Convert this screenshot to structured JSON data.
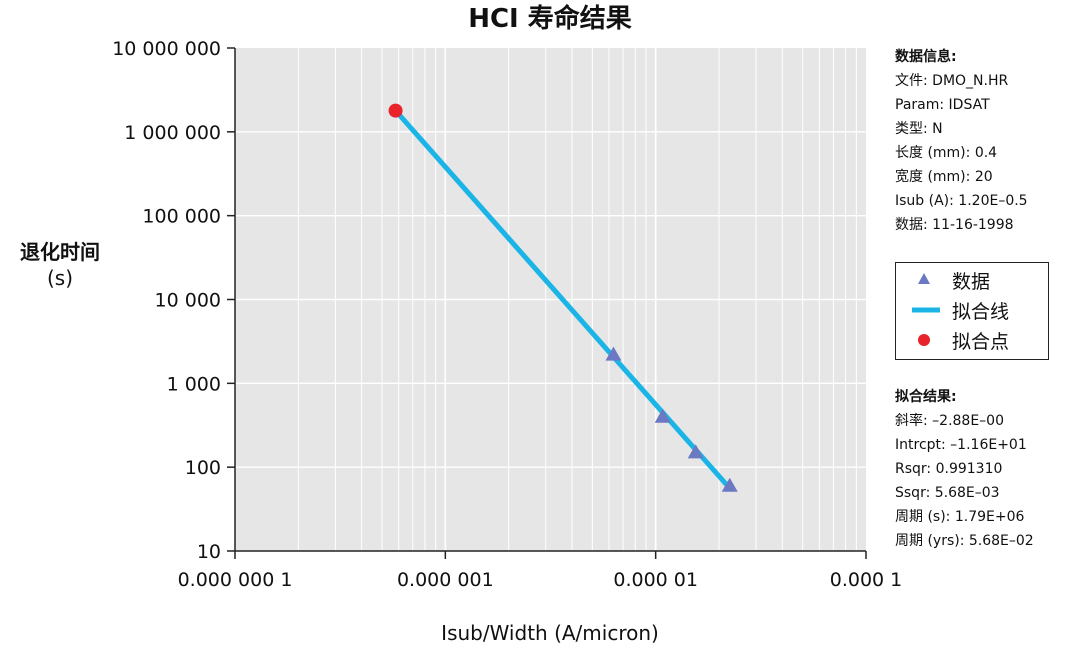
{
  "chart_data": {
    "type": "scatter",
    "title": "HCI 寿命结果",
    "xlabel": "Isub/Width (A/micron)",
    "ylabel_line1": "退化时间",
    "ylabel_line2": "(s)",
    "x_scale": "log",
    "y_scale": "log",
    "xlim": [
      1e-07,
      0.0001
    ],
    "ylim": [
      10,
      10000000
    ],
    "x_ticks": [
      1e-07,
      1e-06,
      1e-05,
      0.0001
    ],
    "x_tick_labels": [
      "0.000 000 1",
      "0.000 001",
      "0.000 01",
      "0.000 1"
    ],
    "y_ticks": [
      10,
      100,
      1000,
      10000,
      100000,
      1000000,
      10000000
    ],
    "y_tick_labels": [
      "10",
      "100",
      "1 000",
      "10 000",
      "100 000",
      "1 000 000",
      "10 000 000"
    ],
    "grid": true,
    "legend_position": "right",
    "series": [
      {
        "name": "数据",
        "marker": "triangle",
        "color": "#6b78c2",
        "points": [
          {
            "x": 6.3e-06,
            "y": 2200
          },
          {
            "x": 1.08e-05,
            "y": 400
          },
          {
            "x": 1.55e-05,
            "y": 150
          },
          {
            "x": 2.25e-05,
            "y": 60
          }
        ]
      },
      {
        "name": "拟合线",
        "marker": "line",
        "color": "#1ab4e6",
        "points": [
          {
            "x": 5.8e-07,
            "y": 1790000
          },
          {
            "x": 2.25e-05,
            "y": 56
          }
        ]
      },
      {
        "name": "拟合点",
        "marker": "circle",
        "color": "#e8232b",
        "points": [
          {
            "x": 5.8e-07,
            "y": 1790000
          }
        ]
      }
    ]
  },
  "colors": {
    "plot_bg": "#e6e6e6",
    "grid": "#ffffff",
    "axis": "#222222"
  },
  "info": {
    "data_heading": "数据信息:",
    "data_lines": [
      "文件: DMO_N.HR",
      "Param: IDSAT",
      "类型: N",
      "长度 (mm): 0.4",
      "宽度 (mm):   20",
      "Isub (A): 1.20E–0.5",
      "数据: 11-16-1998"
    ],
    "fit_heading": "拟合结果:",
    "fit_lines": [
      "斜率: –2.88E–00",
      "Intrcpt: –1.16E+01",
      "Rsqr: 0.991310",
      "Ssqr: 5.68E–03",
      "周期 (s): 1.79E+06",
      "周期 (yrs): 5.68E–02"
    ]
  },
  "legend": {
    "items": [
      {
        "label": "数据",
        "icon": "triangle-icon"
      },
      {
        "label": "拟合线",
        "icon": "line-icon"
      },
      {
        "label": "拟合点",
        "icon": "circle-icon"
      }
    ]
  }
}
